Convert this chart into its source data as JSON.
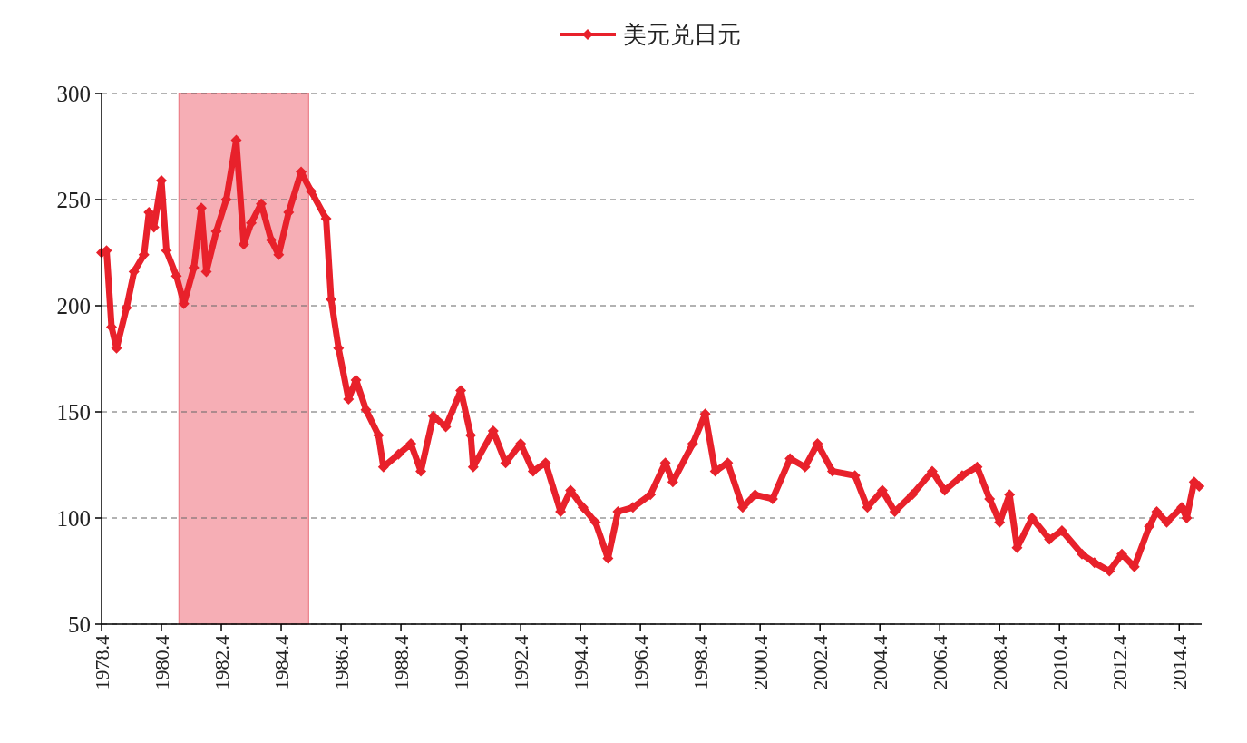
{
  "chart_data": {
    "type": "line",
    "x": [
      "1978-04",
      "1978-06",
      "1978-08",
      "1978-10",
      "1979-02",
      "1979-05",
      "1979-09",
      "1979-11",
      "1980-01",
      "1980-04",
      "1980-06",
      "1980-10",
      "1981-01",
      "1981-05",
      "1981-08",
      "1981-10",
      "1982-02",
      "1982-06",
      "1982-10",
      "1983-01",
      "1983-04",
      "1983-08",
      "1983-12",
      "1984-03",
      "1984-07",
      "1984-12",
      "1985-04",
      "1985-10",
      "1985-12",
      "1986-03",
      "1986-07",
      "1986-10",
      "1987-02",
      "1987-07",
      "1987-09",
      "1988-03",
      "1988-08",
      "1988-12",
      "1989-05",
      "1989-10",
      "1990-04",
      "1990-08",
      "1990-09",
      "1991-05",
      "1991-10",
      "1992-04",
      "1992-09",
      "1993-02",
      "1993-08",
      "1993-12",
      "1994-05",
      "1994-10",
      "1995-03",
      "1995-07",
      "1996-01",
      "1996-08",
      "1997-02",
      "1997-05",
      "1998-01",
      "1998-06",
      "1998-10",
      "1999-03",
      "1999-09",
      "2000-02",
      "2000-09",
      "2001-04",
      "2001-10",
      "2002-03",
      "2002-09",
      "2003-06",
      "2003-11",
      "2004-05",
      "2004-10",
      "2005-05",
      "2006-01",
      "2006-06",
      "2007-01",
      "2007-07",
      "2007-12",
      "2008-04",
      "2008-08",
      "2008-11",
      "2009-05",
      "2009-12",
      "2010-05",
      "2011-01",
      "2011-06",
      "2011-12",
      "2012-05",
      "2012-10",
      "2013-04",
      "2013-07",
      "2013-11",
      "2014-05",
      "2014-07",
      "2014-10",
      "2014-12"
    ],
    "series": [
      {
        "name": "美元兑日元",
        "color": "#e8212b",
        "values": [
          225,
          226,
          190,
          180,
          199,
          216,
          224,
          244,
          237,
          259,
          226,
          214,
          201,
          218,
          246,
          216,
          235,
          250,
          278,
          229,
          239,
          248,
          231,
          224,
          244,
          263,
          254,
          241,
          203,
          180,
          156,
          165,
          151,
          139,
          124,
          130,
          135,
          122,
          148,
          143,
          160,
          139,
          124,
          141,
          126,
          135,
          122,
          126,
          103,
          113,
          105,
          98,
          81,
          103,
          105,
          111,
          126,
          117,
          135,
          149,
          122,
          126,
          105,
          111,
          109,
          128,
          124,
          135,
          122,
          120,
          105,
          113,
          103,
          111,
          122,
          113,
          120,
          124,
          109,
          98,
          111,
          86,
          100,
          90,
          94,
          83,
          79,
          75,
          83,
          77,
          96,
          103,
          98,
          105,
          100,
          117,
          115
        ]
      }
    ],
    "xlim": [
      "1978-04",
      "2015-01"
    ],
    "xticks": [
      {
        "value": "1978-04",
        "label": "1978.4"
      },
      {
        "value": "1980-04",
        "label": "1980.4"
      },
      {
        "value": "1982-04",
        "label": "1982.4"
      },
      {
        "value": "1984-04",
        "label": "1984.4"
      },
      {
        "value": "1986-04",
        "label": "1986.4"
      },
      {
        "value": "1988-04",
        "label": "1988.4"
      },
      {
        "value": "1990-04",
        "label": "1990.4"
      },
      {
        "value": "1992-04",
        "label": "1992.4"
      },
      {
        "value": "1994-04",
        "label": "1994.4"
      },
      {
        "value": "1996-04",
        "label": "1996.4"
      },
      {
        "value": "1998-04",
        "label": "1998.4"
      },
      {
        "value": "2000-04",
        "label": "2000.4"
      },
      {
        "value": "2002-04",
        "label": "2002.4"
      },
      {
        "value": "2004-04",
        "label": "2004.4"
      },
      {
        "value": "2006-04",
        "label": "2006.4"
      },
      {
        "value": "2008-04",
        "label": "2008.4"
      },
      {
        "value": "2010-04",
        "label": "2010.4"
      },
      {
        "value": "2012-04",
        "label": "2012.4"
      },
      {
        "value": "2014-04",
        "label": "2014.4"
      }
    ],
    "ylim": [
      50,
      300
    ],
    "yticks": [
      50,
      100,
      150,
      200,
      250,
      300
    ],
    "grid": "y",
    "legend": "top",
    "marker": "diamond",
    "line_style": "solid",
    "bands": [
      {
        "axis": "x",
        "from": "1980-11",
        "to": "1985-03",
        "color": "#f4a0a8"
      }
    ]
  }
}
